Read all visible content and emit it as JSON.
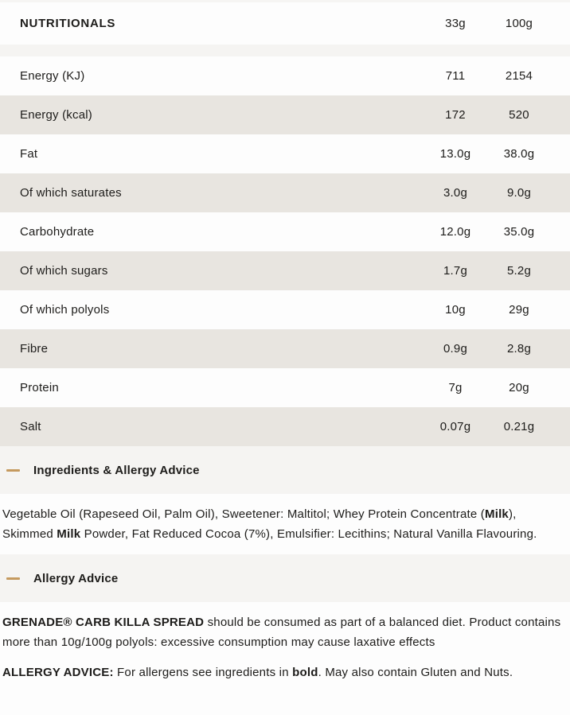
{
  "colors": {
    "row_alt_bg": "#e8e5e0",
    "band_bg": "#f5f4f2",
    "accent_dash": "#c59a5f",
    "text": "#1d1c1a"
  },
  "nutritionals": {
    "title": "NUTRITIONALS",
    "col1": "33g",
    "col2": "100g",
    "rows": [
      {
        "label": "Energy (KJ)",
        "v1": "711",
        "v2": "2154"
      },
      {
        "label": "Energy (kcal)",
        "v1": "172",
        "v2": "520"
      },
      {
        "label": "Fat",
        "v1": "13.0g",
        "v2": "38.0g"
      },
      {
        "label": "Of which saturates",
        "v1": "3.0g",
        "v2": "9.0g"
      },
      {
        "label": "Carbohydrate",
        "v1": "12.0g",
        "v2": "35.0g"
      },
      {
        "label": "Of which sugars",
        "v1": "1.7g",
        "v2": "5.2g"
      },
      {
        "label": "Of which polyols",
        "v1": "10g",
        "v2": "29g"
      },
      {
        "label": "Fibre",
        "v1": "0.9g",
        "v2": "2.8g"
      },
      {
        "label": "Protein",
        "v1": "7g",
        "v2": "20g"
      },
      {
        "label": "Salt",
        "v1": "0.07g",
        "v2": "0.21g"
      }
    ]
  },
  "sections": [
    {
      "heading": "Ingredients & Allergy Advice",
      "icon": "minus-icon",
      "paragraphs": [
        [
          {
            "text": "Vegetable Oil (Rapeseed Oil, Palm Oil), Sweetener: Maltitol; Whey Protein Concentrate (",
            "bold": false
          },
          {
            "text": "Milk",
            "bold": true
          },
          {
            "text": "), Skimmed ",
            "bold": false
          },
          {
            "text": "Milk",
            "bold": true
          },
          {
            "text": " Powder, Fat Reduced Cocoa (7%), Emulsifier: Lecithins; Natural Vanilla Flavouring.",
            "bold": false
          }
        ]
      ]
    },
    {
      "heading": "Allergy Advice",
      "icon": "minus-icon",
      "paragraphs": [
        [
          {
            "text": "GRENADE® CARB KILLA SPREAD",
            "bold": true
          },
          {
            "text": " should be consumed as part of a balanced diet. Product contains more than 10g/100g polyols: excessive consumption may cause laxative effects",
            "bold": false
          }
        ],
        [
          {
            "text": "ALLERGY ADVICE:",
            "bold": true
          },
          {
            "text": " For allergens see ingredients in ",
            "bold": false
          },
          {
            "text": "bold",
            "bold": true
          },
          {
            "text": ". May also contain Gluten and Nuts.",
            "bold": false
          }
        ]
      ]
    }
  ]
}
